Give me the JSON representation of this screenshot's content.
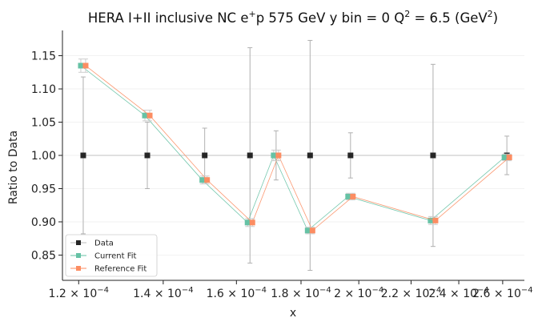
{
  "chart_data": {
    "type": "scatter",
    "title": "HERA I+II inclusive NC e",
    "title_sup": "+",
    "title_mid": "p 575 GeV y bin = 0 Q",
    "title_sup2": "2",
    "title_mid2": " = 6.5 (GeV",
    "title_sup3": "2",
    "title_end": ")",
    "xlabel": "x",
    "ylabel": "Ratio to Data",
    "xlim": [
      0.0001165,
      0.0002705
    ],
    "ylim": [
      0.812,
      1.188
    ],
    "x_scale": "log",
    "x_ticks": [
      {
        "value": 0.00012,
        "mantissa": "1.2",
        "exponent": "−4"
      },
      {
        "value": 0.00014,
        "mantissa": "1.4",
        "exponent": "−4"
      },
      {
        "value": 0.00016,
        "mantissa": "1.6",
        "exponent": "−4"
      },
      {
        "value": 0.00018,
        "mantissa": "1.8",
        "exponent": "−4"
      },
      {
        "value": 0.0002,
        "mantissa": "2",
        "exponent": "−4"
      },
      {
        "value": 0.00022,
        "mantissa": "2.2",
        "exponent": "−4"
      },
      {
        "value": 0.00024,
        "mantissa": "2.4",
        "exponent": "−4"
      },
      {
        "value": 0.00026,
        "mantissa": "2.6",
        "exponent": "−4"
      }
    ],
    "y_ticks": [
      "0.85",
      "0.90",
      "0.95",
      "1.00",
      "1.05",
      "1.10",
      "1.15"
    ],
    "x": [
      0.000121,
      0.000136,
      0.000151,
      0.000164,
      0.000172,
      0.000183,
      0.000197,
      0.000229,
      0.000262
    ],
    "series": [
      {
        "name": "Data",
        "color": "#262626",
        "values": [
          1.0,
          1.0,
          1.0,
          1.0,
          1.0,
          1.0,
          1.0,
          1.0,
          1.0
        ],
        "errors": [
          0.118,
          0.05,
          0.041,
          0.162,
          0.037,
          0.173,
          0.034,
          0.137,
          0.029
        ]
      },
      {
        "name": "Current Fit",
        "color": "#66c2a5",
        "values": [
          1.135,
          1.06,
          0.963,
          0.899,
          1.0,
          0.887,
          0.938,
          0.902,
          0.997
        ],
        "errors": [
          0.01,
          0.008,
          0.006,
          0.006,
          0.008,
          0.005,
          0.005,
          0.006,
          0.005
        ]
      },
      {
        "name": "Reference Fit",
        "color": "#fc8d62",
        "values": [
          1.135,
          1.06,
          0.963,
          0.899,
          1.0,
          0.887,
          0.938,
          0.902,
          0.997
        ],
        "errors": [
          0.01,
          0.008,
          0.006,
          0.006,
          0.008,
          0.005,
          0.005,
          0.006,
          0.005
        ]
      }
    ],
    "grid": true,
    "legend_position": "lower-left"
  }
}
